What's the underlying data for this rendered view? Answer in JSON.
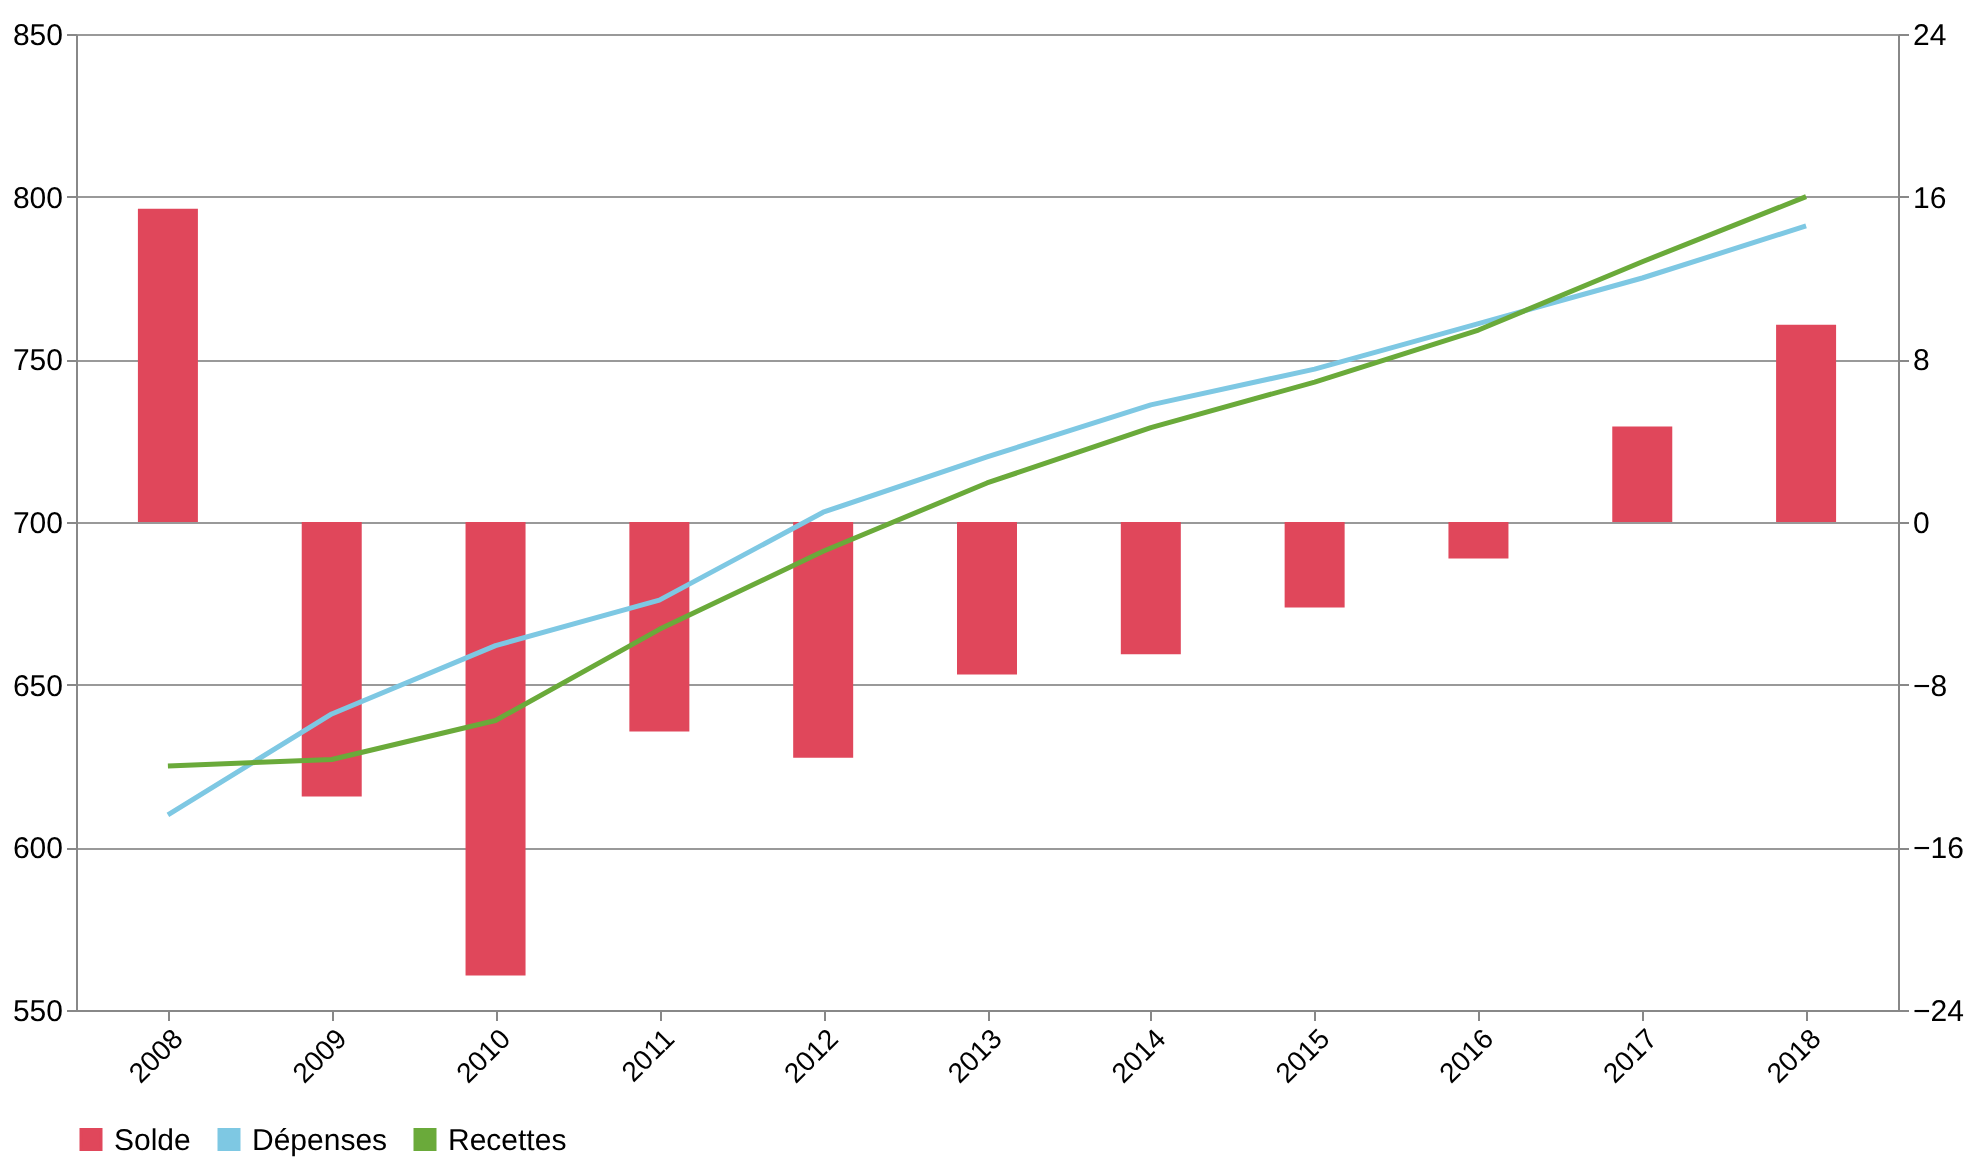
{
  "chart_data": {
    "type": "bar",
    "categories": [
      "2008",
      "2009",
      "2010",
      "2011",
      "2012",
      "2013",
      "2014",
      "2015",
      "2016",
      "2017",
      "2018"
    ],
    "series": [
      {
        "name": "Solde",
        "axis": "y2",
        "color": "#e0475b",
        "values": [
          15.4,
          -13.5,
          -22.3,
          -10.3,
          -11.6,
          -7.5,
          -6.5,
          -4.2,
          -1.8,
          4.7,
          9.7
        ]
      },
      {
        "name": "Dépenses",
        "type": "line",
        "color": "#7ec8e3",
        "values": [
          610,
          641,
          662,
          676,
          703,
          720,
          736,
          747,
          761,
          775,
          791
        ]
      },
      {
        "name": "Recettes",
        "type": "line",
        "color": "#6aaa3a",
        "values": [
          625,
          627,
          639,
          667,
          691,
          712,
          729,
          743,
          759,
          780,
          800
        ]
      }
    ],
    "ylim": [
      550,
      850
    ],
    "yticks": [
      550,
      600,
      650,
      700,
      750,
      800,
      850
    ],
    "y2lim": [
      -24,
      24
    ],
    "y2ticks": [
      -24,
      -16,
      -8,
      0,
      8,
      16,
      24
    ],
    "grid": "y",
    "legend": "bottom",
    "marker": "none",
    "line_style": "solid"
  }
}
